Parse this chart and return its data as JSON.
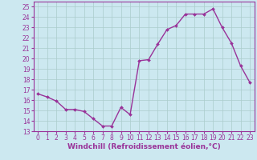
{
  "x": [
    0,
    1,
    2,
    3,
    4,
    5,
    6,
    7,
    8,
    9,
    10,
    11,
    12,
    13,
    14,
    15,
    16,
    17,
    18,
    19,
    20,
    21,
    22,
    23
  ],
  "y": [
    16.6,
    16.3,
    15.9,
    15.1,
    15.1,
    14.9,
    14.2,
    13.5,
    13.5,
    15.3,
    14.6,
    19.8,
    19.9,
    21.4,
    22.8,
    23.2,
    24.3,
    24.3,
    24.3,
    24.8,
    23.0,
    21.5,
    19.3,
    17.7
  ],
  "line_color": "#993399",
  "marker": "D",
  "marker_size": 2.0,
  "bg_color": "#cce8f0",
  "grid_color": "#aacccc",
  "xlabel": "Windchill (Refroidissement éolien,°C)",
  "ylabel": "",
  "xlim": [
    -0.5,
    23.5
  ],
  "ylim": [
    13,
    25.5
  ],
  "xticks": [
    0,
    1,
    2,
    3,
    4,
    5,
    6,
    7,
    8,
    9,
    10,
    11,
    12,
    13,
    14,
    15,
    16,
    17,
    18,
    19,
    20,
    21,
    22,
    23
  ],
  "yticks": [
    13,
    14,
    15,
    16,
    17,
    18,
    19,
    20,
    21,
    22,
    23,
    24,
    25
  ],
  "tick_color": "#993399",
  "tick_fontsize": 5.5,
  "xlabel_fontsize": 6.5,
  "linewidth": 1.0
}
